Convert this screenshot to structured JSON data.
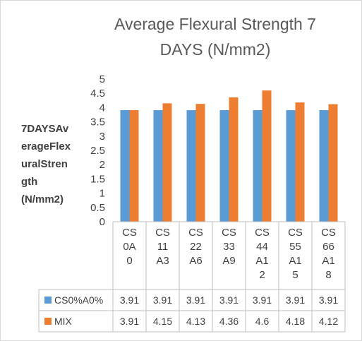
{
  "chart_data": {
    "type": "bar",
    "title_lines": [
      "Average Flexural Strength 7",
      "DAYS (N/mm2)"
    ],
    "ylabel_lines": [
      "7DAYSAv",
      "erageFlex",
      "uralStren",
      "gth",
      "(N/mm2)"
    ],
    "ylim": [
      0,
      5
    ],
    "yticks": [
      "0",
      "0.5",
      "1",
      "1.5",
      "2",
      "2.5",
      "3",
      "3.5",
      "4",
      "4.5",
      "5"
    ],
    "grid": false,
    "legend": "data-table",
    "categories": [
      [
        "CS",
        "0A",
        "0"
      ],
      [
        "CS",
        "11",
        "A3"
      ],
      [
        "CS",
        "22",
        "A6"
      ],
      [
        "CS",
        "33",
        "A9"
      ],
      [
        "CS",
        "44",
        "A1",
        "2"
      ],
      [
        "CS",
        "55",
        "A1",
        "5"
      ],
      [
        "CS",
        "66",
        "A1",
        "8"
      ]
    ],
    "series": [
      {
        "name": "CS0%A0%",
        "color": "#5b9bd5",
        "values": [
          3.91,
          3.91,
          3.91,
          3.91,
          3.91,
          3.91,
          3.91
        ],
        "labels": [
          "3.91",
          "3.91",
          "3.91",
          "3.91",
          "3.91",
          "3.91",
          "3.91"
        ]
      },
      {
        "name": "MIX",
        "color": "#ed7d31",
        "values": [
          3.91,
          4.15,
          4.13,
          4.36,
          4.6,
          4.18,
          4.12
        ],
        "labels": [
          "3.91",
          "4.15",
          "4.13",
          "4.36",
          "4.6",
          "4.18",
          "4.12"
        ]
      }
    ]
  }
}
